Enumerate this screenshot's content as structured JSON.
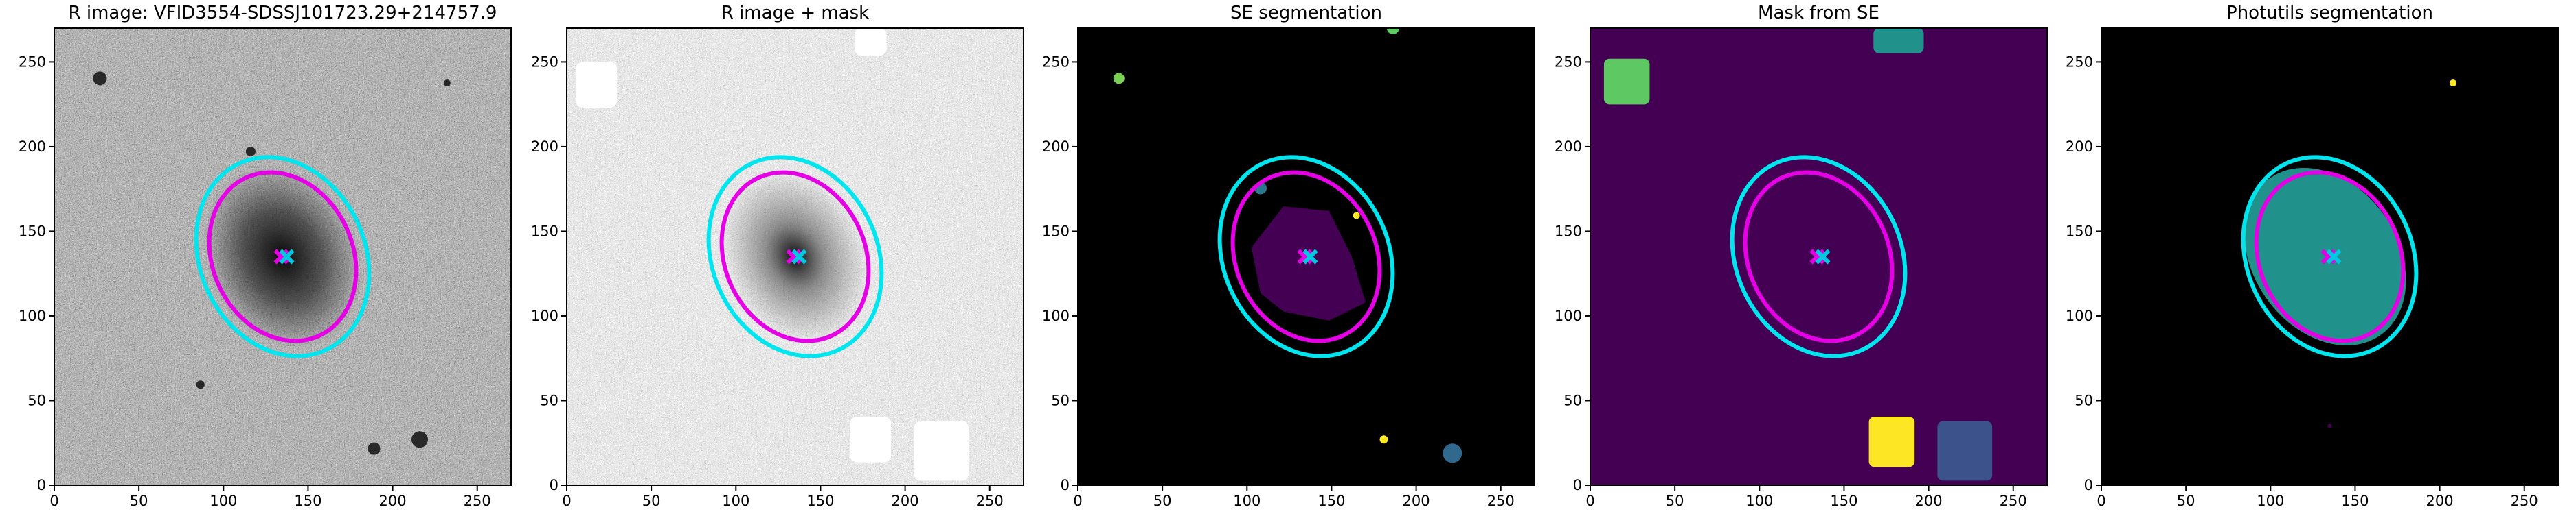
{
  "chart_data": [
    {
      "type": "image",
      "title": "R image: VFID3554-SDSSJ101723.29+214757.9",
      "xlim": [
        0,
        270
      ],
      "ylim": [
        0,
        270
      ],
      "xticks": [
        0,
        50,
        100,
        150,
        200,
        250
      ],
      "yticks": [
        0,
        50,
        100,
        150,
        200,
        250
      ]
    },
    {
      "type": "image",
      "title": "R image + mask",
      "xlim": [
        0,
        270
      ],
      "ylim": [
        0,
        270
      ],
      "xticks": [
        0,
        50,
        100,
        150,
        200,
        250
      ],
      "yticks": [
        0,
        50,
        100,
        150,
        200,
        250
      ]
    },
    {
      "type": "image",
      "title": "SE segmentation",
      "xlim": [
        0,
        270
      ],
      "ylim": [
        0,
        270
      ],
      "xticks": [
        0,
        50,
        100,
        150,
        200,
        250
      ],
      "yticks": [
        0,
        50,
        100,
        150,
        200,
        250
      ]
    },
    {
      "type": "image",
      "title": "Mask from SE",
      "xlim": [
        0,
        270
      ],
      "ylim": [
        0,
        270
      ],
      "xticks": [
        0,
        50,
        100,
        150,
        200,
        250
      ],
      "yticks": [
        0,
        50,
        100,
        150,
        200,
        250
      ]
    },
    {
      "type": "image",
      "title": "Photutils segmentation",
      "xlim": [
        0,
        270
      ],
      "ylim": [
        0,
        270
      ],
      "xticks": [
        0,
        50,
        100,
        150,
        200,
        250
      ],
      "yticks": [
        0,
        50,
        100,
        150,
        200,
        250
      ]
    }
  ]
}
